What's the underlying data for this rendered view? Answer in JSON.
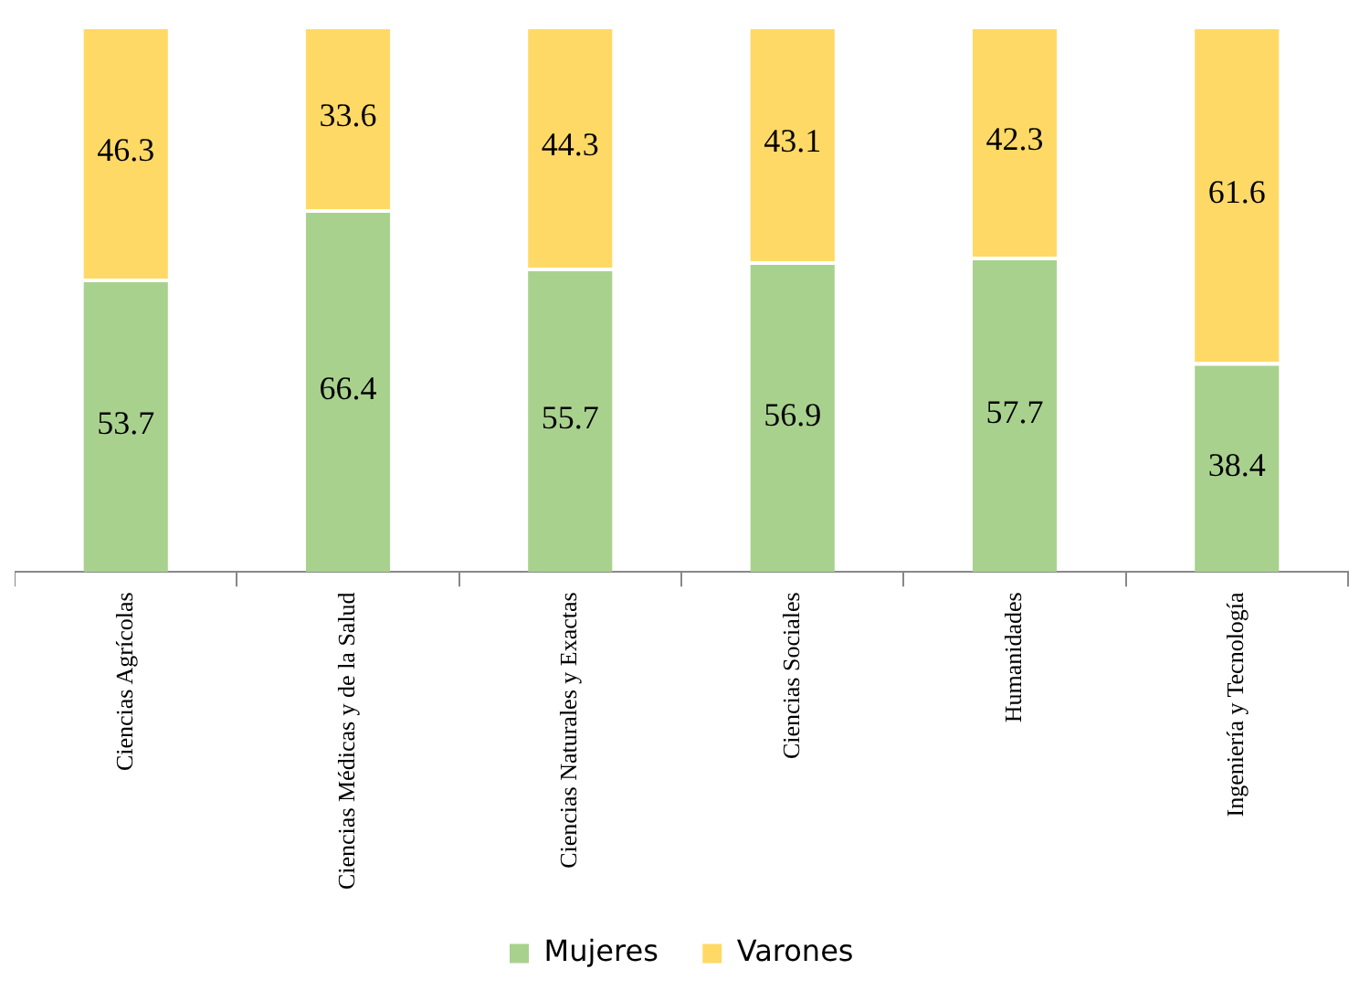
{
  "chart_data": {
    "type": "bar",
    "stacked": true,
    "categories": [
      "Ciencias Agrícolas",
      "Ciencias Médicas y de la Salud",
      "Ciencias Naturales y Exactas",
      "Ciencias Sociales",
      "Humanidades",
      "Ingeniería y Tecnología"
    ],
    "series": [
      {
        "name": "Mujeres",
        "color": "#a9d18e",
        "values": [
          53.7,
          66.4,
          55.7,
          56.9,
          57.7,
          38.4
        ]
      },
      {
        "name": "Varones",
        "color": "#ffd966",
        "values": [
          46.3,
          33.6,
          44.3,
          43.1,
          42.3,
          61.6
        ]
      }
    ],
    "data_labels": true,
    "legend": "bottom",
    "grid": false,
    "tick_labels": "x"
  }
}
